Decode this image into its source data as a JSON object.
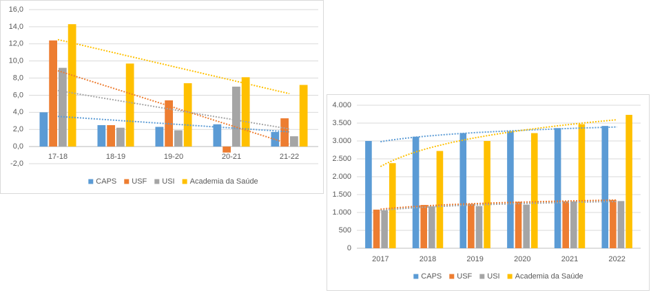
{
  "chart_data": [
    {
      "type": "bar",
      "trendline": "linear",
      "categories": [
        "17-18",
        "18-19",
        "19-20",
        "20-21",
        "21-22"
      ],
      "series": [
        {
          "name": "CAPS",
          "color": "#5b9bd5",
          "values": [
            4.0,
            2.5,
            2.3,
            2.6,
            1.7
          ]
        },
        {
          "name": "USF",
          "color": "#ed7d31",
          "values": [
            12.4,
            2.5,
            5.4,
            -0.7,
            3.3
          ]
        },
        {
          "name": "USI",
          "color": "#a5a5a5",
          "values": [
            9.2,
            2.2,
            1.9,
            7.0,
            1.2
          ]
        },
        {
          "name": "Academia da Saúde",
          "color": "#ffc000",
          "values": [
            14.3,
            9.7,
            7.4,
            8.1,
            7.2
          ]
        }
      ],
      "ylim": [
        -2,
        16
      ],
      "yticks": [
        {
          "value": -2,
          "label": "-2,0"
        },
        {
          "value": 0,
          "label": "0,0"
        },
        {
          "value": 2,
          "label": "2,0"
        },
        {
          "value": 4,
          "label": "4,0"
        },
        {
          "value": 6,
          "label": "6,0"
        },
        {
          "value": 8,
          "label": "8,0"
        },
        {
          "value": 10,
          "label": "10,0"
        },
        {
          "value": 12,
          "label": "12,0"
        },
        {
          "value": 14,
          "label": "14,0"
        },
        {
          "value": 16,
          "label": "16,0"
        }
      ],
      "grid": true,
      "legend": "bottom"
    },
    {
      "type": "bar",
      "trendline": "log",
      "categories": [
        "2017",
        "2018",
        "2019",
        "2020",
        "2021",
        "2022"
      ],
      "series": [
        {
          "name": "CAPS",
          "color": "#5b9bd5",
          "values": [
            3000,
            3120,
            3220,
            3270,
            3360,
            3420
          ]
        },
        {
          "name": "USF",
          "color": "#ed7d31",
          "values": [
            1080,
            1210,
            1240,
            1300,
            1310,
            1350
          ]
        },
        {
          "name": "USI",
          "color": "#a5a5a5",
          "values": [
            1060,
            1170,
            1180,
            1220,
            1310,
            1320
          ]
        },
        {
          "name": "Academia da Saúde",
          "color": "#ffc000",
          "values": [
            2380,
            2720,
            3000,
            3220,
            3470,
            3730
          ]
        }
      ],
      "ylim": [
        0,
        4000
      ],
      "yticks": [
        0,
        500,
        {
          "value": 1000,
          "label": "1.000"
        },
        {
          "value": 1500,
          "label": "1.500"
        },
        {
          "value": 2000,
          "label": "2.000"
        },
        {
          "value": 2500,
          "label": "2.500"
        },
        {
          "value": 3000,
          "label": "3.000"
        },
        {
          "value": 3500,
          "label": "3.500"
        },
        {
          "value": 4000,
          "label": "4.000"
        }
      ],
      "grid": true,
      "legend": "bottom"
    }
  ]
}
